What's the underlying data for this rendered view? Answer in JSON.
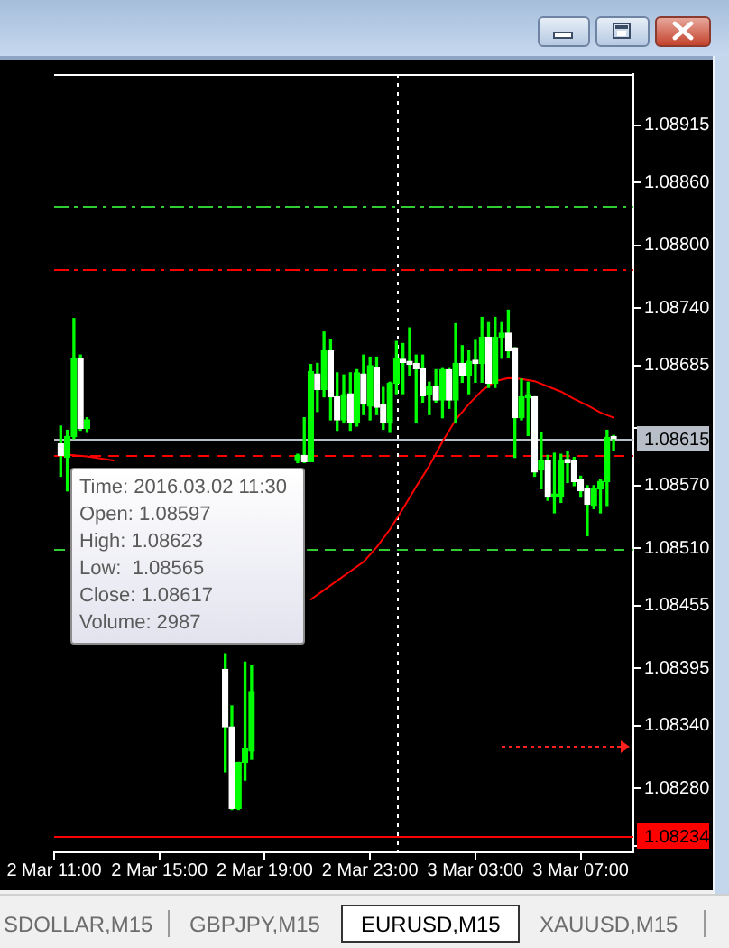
{
  "chart_data": {
    "type": "candlestick",
    "title": "EURUSD,M15",
    "annotations": [
      "Time: 2016.03.02 11:30\nOpen: 1.08597\nHigh: 1.08623\nLow:  1.08565\nClose: 1.08617\nVolume: 2987",
      "SDOLLAR,M15",
      "GBPJPY,M15",
      "XAUUSD,M15"
    ],
    "x": [
      "2016-03-02T11:15",
      "2016-03-02T11:30",
      "2016-03-02T11:45",
      "2016-03-02T12:00",
      "2016-03-02T12:15",
      "2016-03-02T17:30",
      "2016-03-02T17:45",
      "2016-03-02T18:00",
      "2016-03-02T18:15",
      "2016-03-02T18:30",
      "2016-03-02T20:15",
      "2016-03-02T20:30",
      "2016-03-02T20:45",
      "2016-03-02T21:00",
      "2016-03-02T21:15",
      "2016-03-02T21:30",
      "2016-03-02T21:45",
      "2016-03-02T22:00",
      "2016-03-02T22:15",
      "2016-03-02T22:30",
      "2016-03-02T22:45",
      "2016-03-02T23:00",
      "2016-03-02T23:15",
      "2016-03-02T23:30",
      "2016-03-02T23:45",
      "2016-03-03T00:00",
      "2016-03-03T00:15",
      "2016-03-03T00:30",
      "2016-03-03T00:45",
      "2016-03-03T01:00",
      "2016-03-03T01:15",
      "2016-03-03T01:30",
      "2016-03-03T01:45",
      "2016-03-03T02:00",
      "2016-03-03T02:15",
      "2016-03-03T02:30",
      "2016-03-03T02:45",
      "2016-03-03T03:00",
      "2016-03-03T03:15",
      "2016-03-03T03:30",
      "2016-03-03T03:45",
      "2016-03-03T04:00",
      "2016-03-03T04:15",
      "2016-03-03T04:30",
      "2016-03-03T04:45",
      "2016-03-03T05:00",
      "2016-03-03T05:15",
      "2016-03-03T05:30",
      "2016-03-03T05:45",
      "2016-03-03T06:00",
      "2016-03-03T06:15",
      "2016-03-03T06:30",
      "2016-03-03T06:45",
      "2016-03-03T07:00",
      "2016-03-03T07:15",
      "2016-03-03T07:30",
      "2016-03-03T07:45",
      "2016-03-03T08:00",
      "2016-03-03T08:15"
    ],
    "ohlc": [
      [
        1.0861,
        1.08627,
        1.08579,
        1.08599
      ],
      [
        1.08597,
        1.08623,
        1.08565,
        1.08617
      ],
      [
        1.08617,
        1.0873,
        1.08615,
        1.08692
      ],
      [
        1.08692,
        1.08695,
        1.08623,
        1.08625
      ],
      [
        1.08625,
        1.08635,
        1.08621,
        1.08633
      ],
      [
        1.08394,
        1.08409,
        1.08296,
        1.08339
      ],
      [
        1.08339,
        1.08359,
        1.0826,
        1.08261
      ],
      [
        1.08261,
        1.08305,
        1.0826,
        1.08305
      ],
      [
        1.08305,
        1.08401,
        1.08288,
        1.08318
      ],
      [
        1.08316,
        1.08398,
        1.08308,
        1.08373
      ],
      [
        1.08594,
        1.086,
        1.08592,
        1.08599
      ],
      [
        1.08599,
        1.08635,
        1.08592,
        1.08593
      ],
      [
        1.08593,
        1.08686,
        1.08593,
        1.08679
      ],
      [
        1.08677,
        1.08687,
        1.08641,
        1.08662
      ],
      [
        1.08662,
        1.08717,
        1.08655,
        1.08699
      ],
      [
        1.08699,
        1.0871,
        1.08633,
        1.08655
      ],
      [
        1.08655,
        1.08678,
        1.08623,
        1.08633
      ],
      [
        1.08633,
        1.08676,
        1.0863,
        1.08657
      ],
      [
        1.08658,
        1.08678,
        1.08623,
        1.0863
      ],
      [
        1.08631,
        1.08681,
        1.08627,
        1.08678
      ],
      [
        1.08677,
        1.08695,
        1.08638,
        1.08648
      ],
      [
        1.08646,
        1.08693,
        1.08633,
        1.08685
      ],
      [
        1.08683,
        1.08693,
        1.08638,
        1.08645
      ],
      [
        1.08647,
        1.08664,
        1.08624,
        1.0863
      ],
      [
        1.08631,
        1.08669,
        1.08621,
        1.08668
      ],
      [
        1.08668,
        1.08708,
        1.08658,
        1.08692
      ],
      [
        1.08691,
        1.08706,
        1.08658,
        1.08688
      ],
      [
        1.08689,
        1.08721,
        1.08675,
        1.08686
      ],
      [
        1.08687,
        1.08695,
        1.0863,
        1.08682
      ],
      [
        1.08682,
        1.08695,
        1.0865,
        1.08656
      ],
      [
        1.08657,
        1.08669,
        1.08638,
        1.08665
      ],
      [
        1.08665,
        1.08681,
        1.0865,
        1.08652
      ],
      [
        1.08652,
        1.08682,
        1.08635,
        1.08681
      ],
      [
        1.08681,
        1.08682,
        1.08644,
        1.08652
      ],
      [
        1.08652,
        1.08725,
        1.0863,
        1.08687
      ],
      [
        1.08687,
        1.08704,
        1.08669,
        1.08675
      ],
      [
        1.08675,
        1.08699,
        1.08658,
        1.08689
      ],
      [
        1.0869,
        1.08709,
        1.08669,
        1.08687
      ],
      [
        1.08687,
        1.08731,
        1.08669,
        1.08712
      ],
      [
        1.08712,
        1.08726,
        1.08664,
        1.08668
      ],
      [
        1.08668,
        1.08731,
        1.08664,
        1.08712
      ],
      [
        1.08712,
        1.08726,
        1.08692,
        1.08716
      ],
      [
        1.08716,
        1.08738,
        1.08693,
        1.08699
      ],
      [
        1.08702,
        1.08702,
        1.08597,
        1.08635
      ],
      [
        1.08635,
        1.08672,
        1.08633,
        1.08655
      ],
      [
        1.08654,
        1.08669,
        1.08618,
        1.08657
      ],
      [
        1.08655,
        1.08655,
        1.08579,
        1.08583
      ],
      [
        1.08585,
        1.08621,
        1.08567,
        1.08594
      ],
      [
        1.08594,
        1.08599,
        1.08556,
        1.08559
      ],
      [
        1.08559,
        1.08601,
        1.08544,
        1.08562
      ],
      [
        1.08559,
        1.086,
        1.08554,
        1.08594
      ],
      [
        1.08595,
        1.08603,
        1.08573,
        1.08592
      ],
      [
        1.08594,
        1.08597,
        1.0857,
        1.08574
      ],
      [
        1.08576,
        1.08579,
        1.08559,
        1.08565
      ],
      [
        1.08567,
        1.0857,
        1.08522,
        1.08552
      ],
      [
        1.08551,
        1.0857,
        1.08548,
        1.08567
      ],
      [
        1.08567,
        1.08576,
        1.08544,
        1.08574
      ],
      [
        1.08574,
        1.08623,
        1.08551,
        1.08616
      ],
      [
        1.08617,
        1.08618,
        1.08604,
        1.08615
      ]
    ],
    "color": "#00ff00",
    "colors": [
      "#ffffff",
      "#00ff00",
      "#00ff00",
      "#ffffff",
      "#00ff00",
      "#ffffff",
      "#ffffff",
      "#00ff00",
      "#00ff00",
      "#00ff00",
      "#00ff00",
      "#ffffff",
      "#00ff00",
      "#ffffff",
      "#00ff00",
      "#ffffff",
      "#ffffff",
      "#00ff00",
      "#ffffff",
      "#00ff00",
      "#ffffff",
      "#00ff00",
      "#ffffff",
      "#ffffff",
      "#00ff00",
      "#00ff00",
      "#ffffff",
      "#ffffff",
      "#ffffff",
      "#ffffff",
      "#00ff00",
      "#ffffff",
      "#00ff00",
      "#ffffff",
      "#00ff00",
      "#ffffff",
      "#00ff00",
      "#ffffff",
      "#00ff00",
      "#ffffff",
      "#00ff00",
      "#00ff00",
      "#ffffff",
      "#ffffff",
      "#00ff00",
      "#00ff00",
      "#ffffff",
      "#00ff00",
      "#ffffff",
      "#00ff00",
      "#00ff00",
      "#ffffff",
      "#ffffff",
      "#ffffff",
      "#ffffff",
      "#00ff00",
      "#00ff00",
      "#00ff00",
      "#ffffff"
    ],
    "series": [
      {
        "type": "line",
        "color": "#ff0000",
        "x": [
          "2016-03-02T11:15",
          "2016-03-02T11:45",
          "2016-03-02T12:15",
          "2016-03-02T12:45",
          "2016-03-02T13:15",
          "2016-03-02T13:45",
          "2016-03-02T20:45",
          "2016-03-02T21:15",
          "2016-03-02T21:45",
          "2016-03-02T22:15",
          "2016-03-02T22:45",
          "2016-03-02T23:15",
          "2016-03-02T23:45",
          "2016-03-03T00:15",
          "2016-03-03T00:45",
          "2016-03-03T01:15",
          "2016-03-03T01:45",
          "2016-03-03T02:15",
          "2016-03-03T02:45",
          "2016-03-03T03:15",
          "2016-03-03T03:45",
          "2016-03-03T04:15",
          "2016-03-03T04:45",
          "2016-03-03T05:15",
          "2016-03-03T05:45",
          "2016-03-03T06:15",
          "2016-03-03T06:45",
          "2016-03-03T07:15",
          "2016-03-03T07:45",
          "2016-03-03T08:15"
        ],
        "values": [
          1.086,
          1.08599,
          1.08598,
          1.08596,
          1.08594,
          null,
          1.08461,
          1.0847,
          1.08479,
          1.08488,
          1.08497,
          1.08511,
          1.08528,
          1.08548,
          1.08569,
          1.08589,
          1.08612,
          1.08633,
          1.08648,
          1.08661,
          1.0867,
          1.08673,
          1.08672,
          1.0867,
          1.08665,
          1.0866,
          1.08653,
          1.08647,
          1.0864,
          1.08635
        ]
      }
    ],
    "xlim": [
      "2016-03-02T11:00",
      "2016-03-03T09:00"
    ],
    "xticks": [
      {
        "value": "2016-03-02T11:00",
        "label": "2 Mar 11:00"
      },
      {
        "value": "2016-03-02T15:00",
        "label": "2 Mar 15:00"
      },
      {
        "value": "2016-03-02T19:00",
        "label": "2 Mar 19:00"
      },
      {
        "value": "2016-03-02T23:00",
        "label": "2 Mar 23:00"
      },
      {
        "value": "2016-03-03T03:00",
        "label": "3 Mar 03:00"
      },
      {
        "value": "2016-03-03T07:00",
        "label": "3 Mar 07:00"
      }
    ],
    "ylim": [
      1.08219,
      1.08964
    ],
    "yticks": [
      1.08915,
      {
        "value": 1.0886,
        "label": "1.08860"
      },
      {
        "value": 1.088,
        "label": "1.08800"
      },
      {
        "value": 1.0874,
        "label": "1.08740"
      },
      1.08685,
      {
        "value": 1.08625,
        "label": null
      },
      {
        "value": 1.0857,
        "label": "1.08570"
      },
      {
        "value": 1.0851,
        "label": "1.08510"
      },
      1.08455,
      1.08395,
      {
        "value": 1.0834,
        "label": "1.08340"
      },
      {
        "value": 1.0828,
        "label": "1.08280"
      },
      {
        "value": 1.08225,
        "label": null
      }
    ],
    "ref_lines": [
      {
        "axis": "y",
        "value": 1.08837,
        "color": "#32cd32",
        "line_style": "dashdot"
      },
      {
        "axis": "y",
        "value": 1.08777,
        "color": "#ff0000",
        "line_style": "dashdot"
      },
      {
        "axis": "y",
        "value": 1.08615,
        "label": "1.08615",
        "color": "#b8bec8"
      },
      {
        "axis": "y",
        "value": 1.086,
        "color": "#ff0000",
        "line_style": "dashed"
      },
      {
        "axis": "y",
        "value": 1.0851,
        "color": "#32cd32",
        "line_style": "dashed"
      },
      {
        "axis": "y",
        "value": 1.08234,
        "label": "1.08234",
        "color": "#ff0000"
      },
      {
        "axis": "x",
        "value": "2016-03-03T00:00",
        "color": "#ffffff",
        "line_style": "dotted"
      }
    ]
  }
}
